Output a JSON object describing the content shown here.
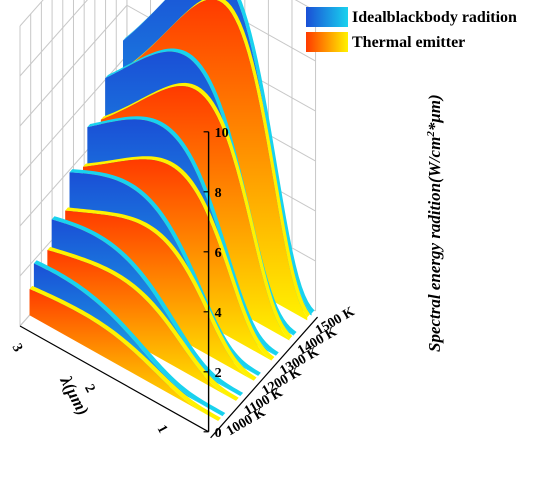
{
  "chart_data": {
    "type": "area",
    "subtype": "3d-waterfall",
    "title": "",
    "xlabel": "λ(μm)",
    "ylabel": "Spectral energy radition(W/cm²*μm)",
    "ylabel_text": "Spectral energy radition",
    "ylabel_units": "(W/cm",
    "ylabel_sup": "2",
    "ylabel_units_end": "*μm)",
    "zlim": [
      0,
      10
    ],
    "z_ticks": [
      "0",
      "2",
      "4",
      "6",
      "8",
      "10"
    ],
    "x_ticks": [
      "3",
      "2",
      "1"
    ],
    "x_axis_reversed": true,
    "temperatures": [
      "1000 K",
      "1100 K",
      "1200 K",
      "1300 K",
      "1400 K",
      "1500 K"
    ],
    "legend": {
      "position": "top-right",
      "entries": [
        {
          "label": "Idealblackbody radition",
          "color_start": "#1a4fd6",
          "color_end": "#19d2ee"
        },
        {
          "label": "Thermal emitter",
          "color_start": "#ff3a00",
          "color_end": "#fff200"
        }
      ]
    },
    "series": [
      {
        "name": "Idealblackbody radition",
        "temperature": "1000 K",
        "peak_wavelength_um": 2.9,
        "peak": 1.6
      },
      {
        "name": "Idealblackbody radition",
        "temperature": "1100 K",
        "peak_wavelength_um": 2.6,
        "peak": 2.6
      },
      {
        "name": "Idealblackbody radition",
        "temperature": "1200 K",
        "peak_wavelength_um": 2.4,
        "peak": 3.9
      },
      {
        "name": "Idealblackbody radition",
        "temperature": "1300 K",
        "peak_wavelength_um": 2.2,
        "peak": 5.5
      },
      {
        "name": "Idealblackbody radition",
        "temperature": "1400 K",
        "peak_wavelength_um": 2.1,
        "peak": 7.3
      },
      {
        "name": "Idealblackbody radition",
        "temperature": "1500 K",
        "peak_wavelength_um": 1.9,
        "peak": 9.7
      },
      {
        "name": "Thermal emitter",
        "temperature": "1000 K",
        "peak_wavelength_um": 2.5,
        "peak": 1.0
      },
      {
        "name": "Thermal emitter",
        "temperature": "1100 K",
        "peak_wavelength_um": 2.3,
        "peak": 1.9
      },
      {
        "name": "Thermal emitter",
        "temperature": "1200 K",
        "peak_wavelength_um": 2.1,
        "peak": 3.1
      },
      {
        "name": "Thermal emitter",
        "temperature": "1300 K",
        "peak_wavelength_um": 2.0,
        "peak": 4.6
      },
      {
        "name": "Thermal emitter",
        "temperature": "1400 K",
        "peak_wavelength_um": 1.9,
        "peak": 6.6
      },
      {
        "name": "Thermal emitter",
        "temperature": "1500 K",
        "peak_wavelength_um": 1.8,
        "peak": 9.0
      }
    ]
  }
}
